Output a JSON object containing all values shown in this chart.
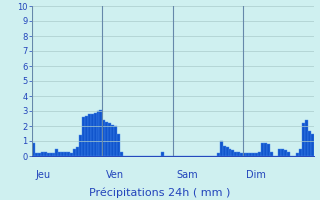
{
  "xlabel": "Précipitations 24h ( mm )",
  "ylabel_values": [
    0,
    1,
    2,
    3,
    4,
    5,
    6,
    7,
    8,
    9,
    10
  ],
  "ylim": [
    0,
    10
  ],
  "background_color": "#cff0f0",
  "bar_color": "#1155cc",
  "bar_edge_color": "#4488ee",
  "grid_color": "#aacccc",
  "day_line_color": "#6688aa",
  "day_labels": [
    "Jeu",
    "Ven",
    "Sam",
    "Dim"
  ],
  "day_positions": [
    0,
    24,
    48,
    72
  ],
  "num_bars": 96,
  "values": [
    0.9,
    0.2,
    0.2,
    0.3,
    0.3,
    0.2,
    0.2,
    0.2,
    0.5,
    0.3,
    0.3,
    0.3,
    0.3,
    0.2,
    0.5,
    0.6,
    1.4,
    2.6,
    2.7,
    2.8,
    2.8,
    2.9,
    3.0,
    3.1,
    2.4,
    2.3,
    2.2,
    2.1,
    2.0,
    1.5,
    0.3,
    0.0,
    0.0,
    0.0,
    0.0,
    0.0,
    0.0,
    0.0,
    0.0,
    0.0,
    0.0,
    0.0,
    0.0,
    0.0,
    0.3,
    0.0,
    0.0,
    0.0,
    0.0,
    0.0,
    0.0,
    0.0,
    0.0,
    0.0,
    0.0,
    0.0,
    0.0,
    0.0,
    0.0,
    0.0,
    0.0,
    0.0,
    0.0,
    0.2,
    1.0,
    0.7,
    0.6,
    0.5,
    0.4,
    0.3,
    0.3,
    0.2,
    0.2,
    0.2,
    0.2,
    0.2,
    0.2,
    0.3,
    0.9,
    0.9,
    0.8,
    0.3,
    0.0,
    0.0,
    0.5,
    0.5,
    0.4,
    0.3,
    0.0,
    0.0,
    0.2,
    0.5,
    2.2,
    2.4,
    1.7,
    1.5
  ],
  "text_color": "#2244bb",
  "xlabel_fontsize": 8,
  "tick_fontsize": 6,
  "day_fontsize": 7
}
